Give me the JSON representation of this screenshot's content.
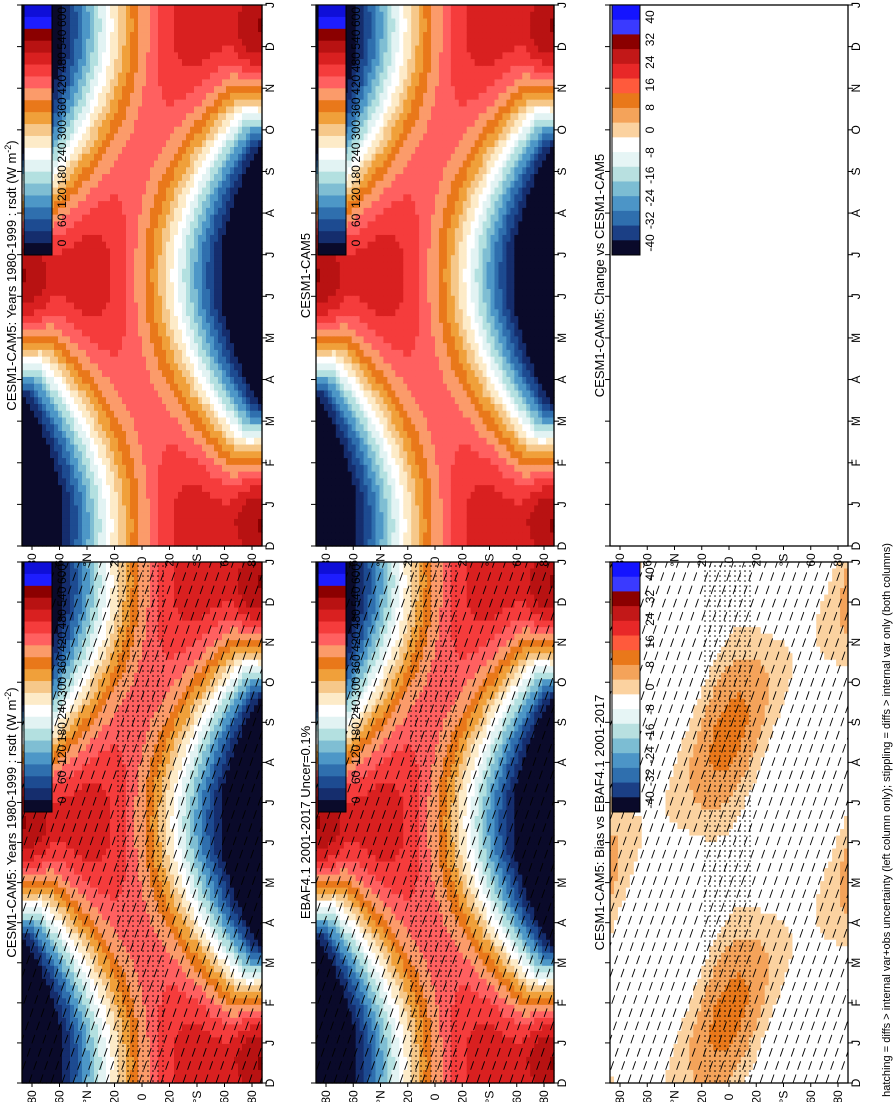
{
  "footer": "hatching = diffs > internal var+obs uncertainty (left column only); stippling = diffs > internal var only (both columns)",
  "chart_data": [
    {
      "type": "heatmap",
      "title": "CESM1-CAM5: Years 1980-1999 : rsdt (W m",
      "title_sup": "-2",
      "title_close": ")",
      "months": [
        "D",
        "J",
        "F",
        "M",
        "A",
        "M",
        "J",
        "J",
        "A",
        "S",
        "O",
        "N",
        "D",
        "J"
      ],
      "lat_labels": [
        "80",
        "60",
        "°N",
        "20",
        "0",
        "20",
        "°S",
        "60",
        "80"
      ],
      "field": "insolation",
      "colorbar": [
        "600",
        "540",
        "480",
        "420",
        "360",
        "300",
        "240",
        "180",
        "120",
        "60",
        "0"
      ],
      "hatching": true,
      "stippling": true
    },
    {
      "type": "heatmap",
      "title": "CESM1-CAM5: Years 1980-1999 : rsdt (W m",
      "title_sup": "-2",
      "title_close": ")",
      "months": [
        "D",
        "J",
        "F",
        "M",
        "A",
        "M",
        "J",
        "J",
        "A",
        "S",
        "O",
        "N",
        "D",
        "J"
      ],
      "lat_labels": [
        "80",
        "60",
        "°N",
        "20",
        "0",
        "20",
        "°S",
        "60",
        "80"
      ],
      "field": "insolation",
      "colorbar": [
        "600",
        "540",
        "480",
        "420",
        "360",
        "300",
        "240",
        "180",
        "120",
        "60",
        "0"
      ],
      "hatching": false,
      "stippling": false
    },
    {
      "type": "heatmap",
      "title": "EBAF4.1 2001-2017 Uncer=0.1%",
      "months": [
        "D",
        "J",
        "F",
        "M",
        "A",
        "M",
        "J",
        "J",
        "A",
        "S",
        "O",
        "N",
        "D",
        "J"
      ],
      "lat_labels": [
        "80",
        "60",
        "°N",
        "20",
        "0",
        "20",
        "°S",
        "60",
        "80"
      ],
      "field": "insolation",
      "colorbar": [
        "600",
        "540",
        "480",
        "420",
        "360",
        "300",
        "240",
        "180",
        "120",
        "60",
        "0"
      ],
      "hatching": true,
      "stippling": true
    },
    {
      "type": "heatmap",
      "title": "CESM1-CAM5",
      "months": [
        "D",
        "J",
        "F",
        "M",
        "A",
        "M",
        "J",
        "J",
        "A",
        "S",
        "O",
        "N",
        "D",
        "J"
      ],
      "lat_labels": [
        "80",
        "60",
        "°N",
        "20",
        "0",
        "20",
        "°S",
        "60",
        "80"
      ],
      "field": "insolation",
      "colorbar": [
        "600",
        "540",
        "480",
        "420",
        "360",
        "300",
        "240",
        "180",
        "120",
        "60",
        "0"
      ],
      "hatching": false,
      "stippling": false
    },
    {
      "type": "heatmap",
      "title": "CESM1-CAM5: Bias vs EBAF4.1 2001-2017",
      "months": [
        "D",
        "J",
        "F",
        "M",
        "A",
        "M",
        "J",
        "J",
        "A",
        "S",
        "O",
        "N",
        "D",
        "J"
      ],
      "lat_labels": [
        "80",
        "60",
        "°N",
        "20",
        "0",
        "20",
        "°S",
        "60",
        "80"
      ],
      "field": "bias",
      "colorbar": [
        "40",
        "32",
        "24",
        "16",
        "8",
        "0",
        "-8",
        "-16",
        "-24",
        "-32",
        "-40"
      ],
      "hatching": true,
      "stippling": true
    },
    {
      "type": "heatmap",
      "title": "CESM1-CAM5: Change vs CESM1-CAM5",
      "months": [
        "D",
        "J",
        "F",
        "M",
        "A",
        "M",
        "J",
        "J",
        "A",
        "S",
        "O",
        "N",
        "D",
        "J"
      ],
      "lat_labels": [
        "80",
        "60",
        "°N",
        "20",
        "0",
        "20",
        "°S",
        "60",
        "80"
      ],
      "field": "blank",
      "colorbar": [
        "40",
        "32",
        "24",
        "16",
        "8",
        "0",
        "-8",
        "-16",
        "-24",
        "-32",
        "-40"
      ],
      "hatching": false,
      "stippling": false
    }
  ],
  "palettes": {
    "insolation": [
      "#0f0fd8",
      "#1d1dff",
      "#8b0000",
      "#b81212",
      "#d92020",
      "#f53c3c",
      "#ff6060",
      "#fb9b6a",
      "#e9781a",
      "#f0a03a",
      "#f6c88a",
      "#fdebc8",
      "#ffffff",
      "#e2f3f3",
      "#b3e0e0",
      "#7fbed3",
      "#4d97c7",
      "#2f6fae",
      "#1d4b91",
      "#152d6d",
      "#0a0a2a"
    ],
    "bias": [
      "#1414ff",
      "#3a3aff",
      "#8b0000",
      "#c21818",
      "#e82828",
      "#ff5a3c",
      "#e9781a",
      "#f4a35a",
      "#fbd2a0",
      "#ffffff",
      "#e6f5f5",
      "#b8e0e0",
      "#7cbdd3",
      "#4c95c7",
      "#2f6fae",
      "#1b3f85",
      "#0a0a2a"
    ]
  },
  "colors": {
    "background": "#ffffff",
    "text": "#000000"
  }
}
